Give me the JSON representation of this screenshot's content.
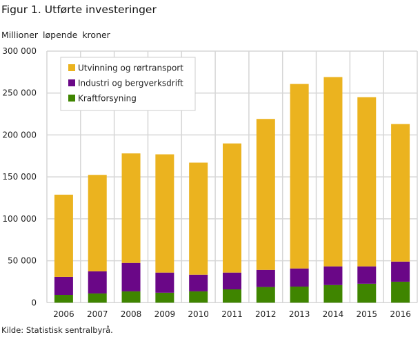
{
  "title": "Figur 1. Utførte investeringer",
  "source": "Kilde: Statistisk sentralbyrå.",
  "chart_data": {
    "type": "bar",
    "stacked": true,
    "title": "Figur 1. Utførte investeringer",
    "ylabel": "Millioner løpende kroner",
    "xlabel": "",
    "ylim": [
      0,
      300000
    ],
    "yticks": [
      0,
      50000,
      100000,
      150000,
      200000,
      250000,
      300000
    ],
    "ytick_labels": [
      "0",
      "50 000",
      "100 000",
      "150 000",
      "200 000",
      "250 000",
      "300 000"
    ],
    "grid": true,
    "legend_position": "top-left",
    "categories": [
      "2006",
      "2007",
      "2008",
      "2009",
      "2010",
      "2011",
      "2012",
      "2013",
      "2014",
      "2015",
      "2016"
    ],
    "series": [
      {
        "name": "Kraftforsyning",
        "color": "#3f8500",
        "values": [
          9300,
          11000,
          13500,
          11900,
          13500,
          15900,
          18700,
          19200,
          21000,
          22600,
          25000
        ]
      },
      {
        "name": "Industri og bergverksdrift",
        "color": "#6a0787",
        "values": [
          21500,
          26400,
          33900,
          24000,
          19900,
          20000,
          20400,
          21600,
          22300,
          20700,
          24000
        ]
      },
      {
        "name": "Utvinning og rørtransport",
        "color": "#ebb31f",
        "values": [
          98000,
          115000,
          130600,
          141000,
          133600,
          154000,
          180000,
          220000,
          225700,
          201700,
          164000
        ]
      }
    ]
  }
}
